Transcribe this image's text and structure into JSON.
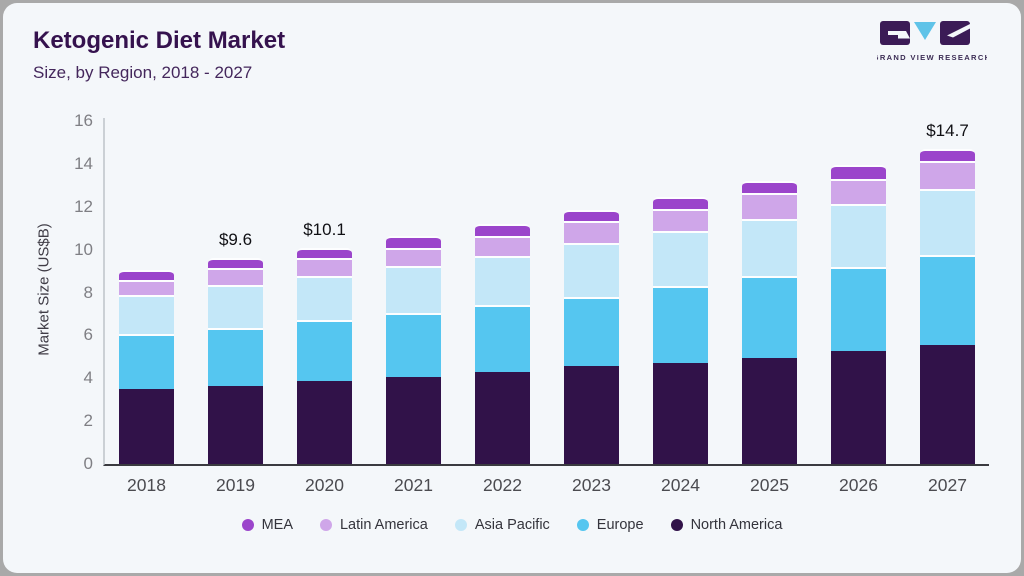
{
  "header": {
    "title": "Ketogenic Diet Market",
    "subtitle": "Size, by Region, 2018 - 2027"
  },
  "logo": {
    "name": "GRAND VIEW RESEARCH",
    "brand_purple": "#3b1b56",
    "brand_blue": "#5fc3e8"
  },
  "chart_data": {
    "type": "bar",
    "stacked": true,
    "title": "Ketogenic Diet Market",
    "subtitle": "Size, by Region, 2018 - 2027",
    "xlabel": "",
    "ylabel": "Market Size (US$B)",
    "ylim": [
      0,
      16
    ],
    "yticks": [
      0,
      2,
      4,
      6,
      8,
      10,
      12,
      14,
      16
    ],
    "grid": false,
    "legend_position": "bottom",
    "categories": [
      "2018",
      "2019",
      "2020",
      "2021",
      "2022",
      "2023",
      "2024",
      "2025",
      "2026",
      "2027"
    ],
    "series": [
      {
        "name": "North America",
        "color": "#311249",
        "values": [
          3.5,
          3.65,
          3.85,
          4.05,
          4.3,
          4.55,
          4.7,
          4.95,
          5.25,
          5.55
        ]
      },
      {
        "name": "Europe",
        "color": "#55c6f0",
        "values": [
          2.55,
          2.7,
          2.85,
          3.0,
          3.1,
          3.25,
          3.6,
          3.8,
          3.95,
          4.2
        ]
      },
      {
        "name": "Asia Pacific",
        "color": "#c3e7f8",
        "values": [
          1.85,
          2.0,
          2.05,
          2.2,
          2.3,
          2.5,
          2.55,
          2.7,
          2.95,
          3.1
        ]
      },
      {
        "name": "Latin America",
        "color": "#cfa6e9",
        "values": [
          0.7,
          0.8,
          0.85,
          0.85,
          0.95,
          1.05,
          1.05,
          1.2,
          1.15,
          1.3
        ]
      },
      {
        "name": "MEA",
        "color": "#9b45cb",
        "values": [
          0.45,
          0.45,
          0.5,
          0.55,
          0.55,
          0.5,
          0.55,
          0.55,
          0.65,
          0.55
        ]
      }
    ],
    "totals": [
      9.05,
      9.6,
      10.1,
      10.65,
      11.2,
      11.85,
      12.45,
      13.2,
      13.95,
      14.7
    ],
    "annotations": [
      {
        "category": "2019",
        "label": "$9.6"
      },
      {
        "category": "2020",
        "label": "$10.1"
      },
      {
        "category": "2027",
        "label": "$14.7"
      }
    ]
  }
}
